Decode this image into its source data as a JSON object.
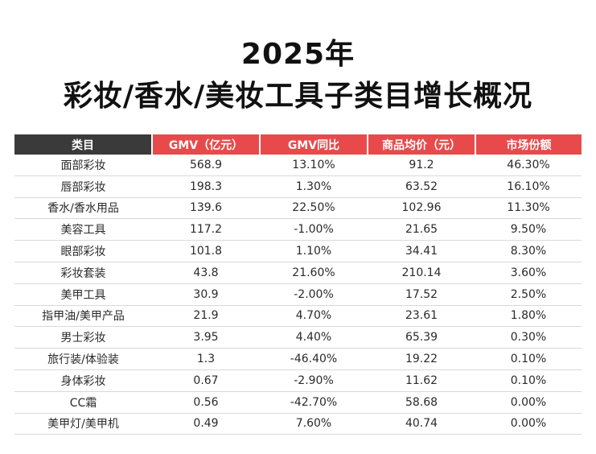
{
  "title": {
    "line1": "2025年",
    "line2": "彩妆/香水/美妆工具子类目增长概况"
  },
  "colors": {
    "header_dark": "#3a3a3a",
    "header_red": "#e84a4b"
  },
  "table": {
    "headers": [
      "类目",
      "GMV（亿元）",
      "GMV同比",
      "商品均价（元）",
      "市场份额"
    ],
    "rows": [
      [
        "面部彩妆",
        "568.9",
        "13.10%",
        "91.2",
        "46.30%"
      ],
      [
        "唇部彩妆",
        "198.3",
        "1.30%",
        "63.52",
        "16.10%"
      ],
      [
        "香水/香水用品",
        "139.6",
        "22.50%",
        "102.96",
        "11.30%"
      ],
      [
        "美容工具",
        "117.2",
        "-1.00%",
        "21.65",
        "9.50%"
      ],
      [
        "眼部彩妆",
        "101.8",
        "1.10%",
        "34.41",
        "8.30%"
      ],
      [
        "彩妆套装",
        "43.8",
        "21.60%",
        "210.14",
        "3.60%"
      ],
      [
        "美甲工具",
        "30.9",
        "-2.00%",
        "17.52",
        "2.50%"
      ],
      [
        "指甲油/美甲产品",
        "21.9",
        "4.70%",
        "23.61",
        "1.80%"
      ],
      [
        "男士彩妆",
        "3.95",
        "4.40%",
        "65.39",
        "0.30%"
      ],
      [
        "旅行装/体验装",
        "1.3",
        "-46.40%",
        "19.22",
        "0.10%"
      ],
      [
        "身体彩妆",
        "0.67",
        "-2.90%",
        "11.62",
        "0.10%"
      ],
      [
        "CC霜",
        "0.56",
        "-42.70%",
        "58.68",
        "0.00%"
      ],
      [
        "美甲灯/美甲机",
        "0.49",
        "7.60%",
        "40.74",
        "0.00%"
      ]
    ]
  }
}
